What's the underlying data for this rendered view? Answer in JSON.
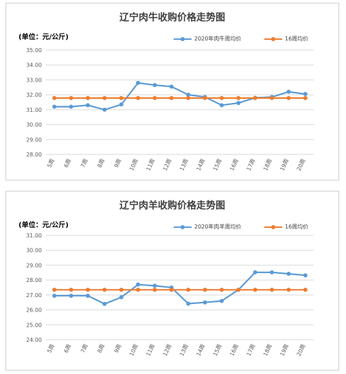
{
  "chart_data": [
    {
      "type": "line",
      "title": "辽宁肉牛收购价格走势图",
      "unit_label": "(单位：元/公斤)",
      "categories": [
        "5周",
        "6周",
        "7周",
        "8周",
        "9周",
        "10周",
        "11周",
        "12周",
        "13周",
        "14周",
        "15周",
        "16周",
        "17周",
        "18周",
        "19周",
        "20周"
      ],
      "ylim": [
        28.0,
        35.0
      ],
      "yticks": [
        "28.00",
        "29.00",
        "30.00",
        "31.00",
        "32.00",
        "33.00",
        "34.00",
        "35.00"
      ],
      "grid": true,
      "legend_position": "top-right",
      "series": [
        {
          "name": "2020年肉牛周均价",
          "color": "#5b9bd5",
          "values": [
            31.2,
            31.2,
            31.3,
            31.0,
            31.35,
            32.8,
            32.65,
            32.55,
            32.0,
            31.85,
            31.3,
            31.45,
            31.8,
            31.85,
            32.2,
            32.05
          ]
        },
        {
          "name": "16周均价",
          "color": "#ed7d31",
          "values": [
            31.78,
            31.78,
            31.78,
            31.78,
            31.78,
            31.78,
            31.78,
            31.78,
            31.78,
            31.78,
            31.78,
            31.78,
            31.78,
            31.78,
            31.78,
            31.78
          ]
        }
      ]
    },
    {
      "type": "line",
      "title": "辽宁肉羊收购价格走势图",
      "unit_label": "(单位：元/公斤)",
      "categories": [
        "5周",
        "6周",
        "7周",
        "8周",
        "9周",
        "10周",
        "11周",
        "12周",
        "13周",
        "14周",
        "15周",
        "16周",
        "17周",
        "18周",
        "19周",
        "20周"
      ],
      "ylim": [
        24.0,
        31.0
      ],
      "yticks": [
        "24.00",
        "25.00",
        "26.00",
        "27.00",
        "28.00",
        "29.00",
        "30.00",
        "31.00"
      ],
      "grid": true,
      "legend_position": "top-right",
      "series": [
        {
          "name": "2020年肉羊周均价",
          "color": "#5b9bd5",
          "values": [
            26.95,
            26.95,
            26.95,
            26.4,
            26.85,
            27.7,
            27.62,
            27.5,
            26.42,
            26.5,
            26.6,
            27.35,
            28.52,
            28.52,
            28.42,
            28.32
          ]
        },
        {
          "name": "16周均价",
          "color": "#ed7d31",
          "values": [
            27.35,
            27.35,
            27.35,
            27.35,
            27.35,
            27.35,
            27.35,
            27.35,
            27.35,
            27.35,
            27.35,
            27.35,
            27.35,
            27.35,
            27.35,
            27.35
          ]
        }
      ]
    }
  ]
}
